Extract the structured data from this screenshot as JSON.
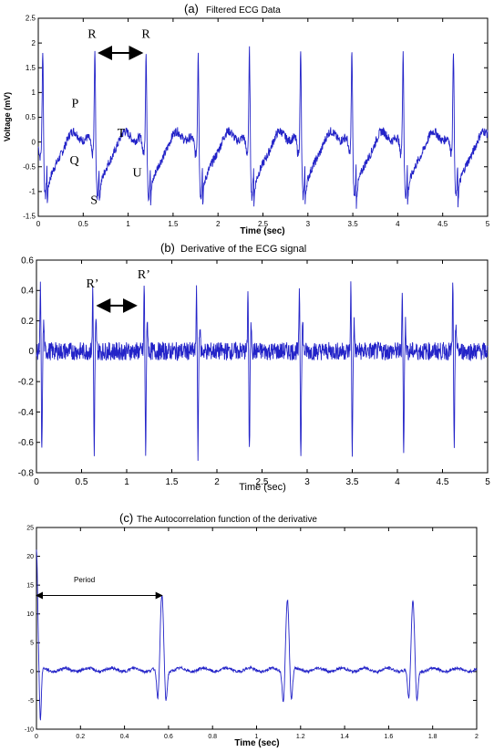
{
  "colors": {
    "trace": "#2323c8",
    "axis": "#000000",
    "arrow": "#000000"
  },
  "chart_data": [
    {
      "type": "line",
      "panel_letter": "(a)",
      "title": "Filtered ECG Data",
      "xlabel": "Time (sec)",
      "ylabel": "Voltage (mV)",
      "xlim": [
        0,
        5
      ],
      "ylim": [
        -1.5,
        2.5
      ],
      "xticks": [
        0,
        0.5,
        1,
        1.5,
        2,
        2.5,
        3,
        3.5,
        4,
        4.5,
        5
      ],
      "yticks": [
        -1.5,
        -1,
        -0.5,
        0,
        0.5,
        1,
        1.5,
        2,
        2.5
      ],
      "xtick_labels": [
        "0",
        "0.5",
        "1",
        "1.5",
        "2",
        "2.5",
        "3",
        "3.5",
        "4",
        "4.5",
        "5"
      ],
      "ytick_labels": [
        "-1.5",
        "-1",
        "-0.5",
        "0",
        "0.5",
        "1",
        "1.5",
        "2",
        "2.5"
      ],
      "grid": false,
      "series": [
        {
          "beat_times": [
            0.05,
            0.63,
            1.2,
            1.78,
            2.35,
            2.92,
            3.49,
            4.06,
            4.62
          ],
          "r_peak": 2.05,
          "s_trough": -1.0,
          "baseline": 0.0
        }
      ],
      "annotations": [
        {
          "text": "R",
          "x": 0.55,
          "y": 2.1
        },
        {
          "text": "R",
          "x": 1.15,
          "y": 2.1
        },
        {
          "text": "P",
          "x": 0.37,
          "y": 0.7
        },
        {
          "text": "T",
          "x": 0.88,
          "y": 0.1
        },
        {
          "text": "Q",
          "x": 0.35,
          "y": -0.45
        },
        {
          "text": "U",
          "x": 1.05,
          "y": -0.7
        },
        {
          "text": "S",
          "x": 0.58,
          "y": -1.25
        }
      ],
      "arrow": {
        "x1": 0.68,
        "x2": 1.15,
        "y": 1.8
      }
    },
    {
      "type": "line",
      "panel_letter": "(b)",
      "title": "Derivative of the ECG signal",
      "xlabel": "Time (sec)",
      "ylabel": "",
      "xlim": [
        0,
        5
      ],
      "ylim": [
        -0.8,
        0.6
      ],
      "xticks": [
        0,
        0.5,
        1,
        1.5,
        2,
        2.5,
        3,
        3.5,
        4,
        4.5,
        5
      ],
      "yticks": [
        -0.8,
        -0.6,
        -0.4,
        -0.2,
        0,
        0.2,
        0.4,
        0.6
      ],
      "xtick_labels": [
        "0",
        "0.5",
        "1",
        "1.5",
        "2",
        "2.5",
        "3",
        "3.5",
        "4",
        "4.5",
        "5"
      ],
      "ytick_labels": [
        "-0.8",
        "-0.6",
        "-0.4",
        "-0.2",
        "0",
        "0.2",
        "0.4",
        "0.6"
      ],
      "grid": false,
      "series": [
        {
          "beat_times": [
            0.05,
            0.63,
            1.2,
            1.78,
            2.35,
            2.92,
            3.49,
            4.06,
            4.62
          ],
          "peak": 0.44,
          "trough": -0.68,
          "noise": 0.06
        }
      ],
      "annotations": [
        {
          "text": "R’",
          "x": 0.55,
          "y": 0.42
        },
        {
          "text": "R’",
          "x": 1.12,
          "y": 0.48
        }
      ],
      "arrow": {
        "x1": 0.68,
        "x2": 1.1,
        "y": 0.3
      }
    },
    {
      "type": "line",
      "panel_letter": "(c)",
      "title": "The Autocorrelation function of the derivative",
      "xlabel": "Time (sec)",
      "ylabel": "",
      "xlim": [
        0,
        2
      ],
      "ylim": [
        -10,
        25
      ],
      "xticks": [
        0,
        0.2,
        0.4,
        0.6,
        0.8,
        1,
        1.2,
        1.4,
        1.6,
        1.8,
        2
      ],
      "yticks": [
        -10,
        -5,
        0,
        5,
        10,
        15,
        20,
        25
      ],
      "xtick_labels": [
        "0",
        "0.2",
        "0.4",
        "0.6",
        "0.8",
        "1",
        "1.2",
        "1.4",
        "1.6",
        "1.8",
        "2"
      ],
      "ytick_labels": [
        "-10",
        "-5",
        "0",
        "5",
        "10",
        "15",
        "20",
        "25"
      ],
      "grid": false,
      "series": [
        {
          "peaks": [
            {
              "x": 0.0,
              "y": 21
            },
            {
              "x": 0.57,
              "y": 13.2
            },
            {
              "x": 1.14,
              "y": 12.8
            },
            {
              "x": 1.71,
              "y": 12
            }
          ],
          "trough": -5.5,
          "baseline": 0.3
        }
      ],
      "annotations": [
        {
          "text": "Period",
          "x": 0.17,
          "y": 15.5
        }
      ],
      "arrow": {
        "x1": 0.0,
        "x2": 0.57,
        "y": 13.2
      }
    }
  ]
}
